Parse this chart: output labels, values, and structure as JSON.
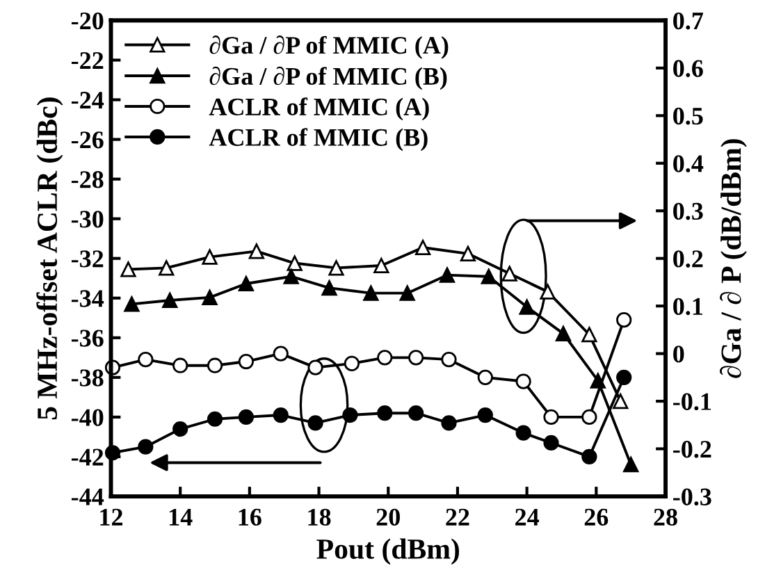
{
  "chart_data": {
    "type": "line",
    "xlabel": "Pout (dBm)",
    "ylabel": "5 MHz-offset ACLR (dBc)",
    "y2label": "∂Ga / ∂ P (dB/dBm)",
    "xlim": [
      12,
      28
    ],
    "xticks": [
      12,
      14,
      16,
      18,
      20,
      22,
      24,
      26,
      28
    ],
    "ylim": [
      -44,
      -20
    ],
    "yticks": [
      -44,
      -42,
      -40,
      -38,
      -36,
      -34,
      -32,
      -30,
      -28,
      -26,
      -24,
      -22,
      -20
    ],
    "y2lim": [
      -0.3,
      0.7
    ],
    "y2ticks": [
      -0.3,
      -0.2,
      -0.1,
      0,
      0.1,
      0.2,
      0.3,
      0.4,
      0.5,
      0.6,
      0.7
    ],
    "legend": "top left",
    "grid": false,
    "series": [
      {
        "name": "∂Ga / ∂P of MMIC (A)",
        "color": "#000000",
        "axis": "y2",
        "marker": "triangle",
        "x": [
          12.5,
          13.6,
          14.85,
          16.2,
          17.3,
          18.5,
          19.8,
          21.0,
          22.3,
          23.5,
          24.6,
          25.8,
          26.7
        ],
        "values": [
          0.177,
          0.18,
          0.203,
          0.215,
          0.19,
          0.18,
          0.185,
          0.223,
          0.21,
          0.168,
          0.13,
          0.04,
          -0.1
        ]
      },
      {
        "name": "∂Ga / ∂P of MMIC (B)",
        "color": "#000000",
        "axis": "y2",
        "marker": "triangle",
        "x": [
          12.6,
          13.7,
          14.85,
          15.9,
          17.2,
          18.3,
          19.5,
          20.55,
          21.7,
          22.9,
          24.0,
          25.05,
          26.05,
          27.0
        ],
        "values": [
          0.104,
          0.112,
          0.118,
          0.147,
          0.162,
          0.138,
          0.127,
          0.127,
          0.165,
          0.162,
          0.098,
          0.042,
          -0.057,
          -0.233
        ]
      },
      {
        "name": "ACLR of MMIC (A)",
        "color": "#000000",
        "marker": "circle",
        "x": [
          12.05,
          13.0,
          14.0,
          15.0,
          15.9,
          16.9,
          17.9,
          18.95,
          19.9,
          20.8,
          21.75,
          22.8,
          23.9,
          24.7,
          25.8,
          26.8
        ],
        "values": [
          -37.5,
          -37.1,
          -37.4,
          -37.4,
          -37.2,
          -36.8,
          -37.5,
          -37.3,
          -37.0,
          -37.0,
          -37.1,
          -38.0,
          -38.2,
          -40.0,
          -40.0,
          -35.1
        ]
      },
      {
        "name": "ACLR of MMIC (B)",
        "color": "#000000",
        "marker": "circle",
        "x": [
          12.05,
          13.0,
          14.0,
          15.0,
          15.9,
          16.9,
          17.9,
          18.9,
          19.9,
          20.8,
          21.75,
          22.8,
          23.9,
          24.7,
          25.8,
          26.8
        ],
        "values": [
          -41.8,
          -41.5,
          -40.6,
          -40.1,
          -40.0,
          -39.9,
          -40.3,
          -39.9,
          -39.8,
          -39.8,
          -40.3,
          -39.9,
          -40.8,
          -41.3,
          -42.0,
          -38.0
        ]
      }
    ]
  }
}
